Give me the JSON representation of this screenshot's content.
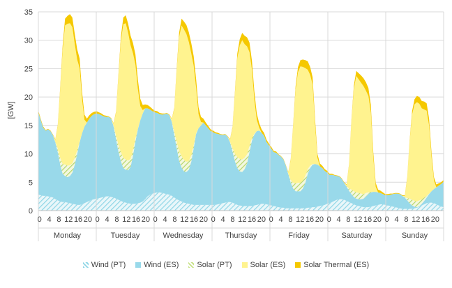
{
  "chart_data": {
    "type": "area",
    "stacked": true,
    "ylabel": "[GW]",
    "ylim": [
      0,
      35
    ],
    "yticks": [
      0,
      5,
      10,
      15,
      20,
      25,
      30,
      35
    ],
    "hour_labels": [
      "0",
      "4",
      "8",
      "12",
      "16",
      "20"
    ],
    "days": [
      "Monday",
      "Tuesday",
      "Wednesday",
      "Thursday",
      "Friday",
      "Saturday",
      "Sunday"
    ],
    "hours_per_day": 24,
    "x_unit": "hour",
    "legend_position": "bottom",
    "grid": "horizontal",
    "series": [
      {
        "name": "Wind (PT)",
        "color": "#8fd6e6",
        "pattern": "hatch",
        "values": [
          2.8,
          2.7,
          2.6,
          2.6,
          2.5,
          2.4,
          2.3,
          2.0,
          1.8,
          1.6,
          1.5,
          1.5,
          1.4,
          1.3,
          1.2,
          1.1,
          1.0,
          1.0,
          1.1,
          1.3,
          1.5,
          1.7,
          1.9,
          2.0,
          2.1,
          2.2,
          2.3,
          2.4,
          2.5,
          2.5,
          2.4,
          2.3,
          2.1,
          1.9,
          1.7,
          1.5,
          1.4,
          1.3,
          1.2,
          1.2,
          1.2,
          1.3,
          1.4,
          1.6,
          2.0,
          2.5,
          2.8,
          3.0,
          3.1,
          3.2,
          3.2,
          3.1,
          3.0,
          2.9,
          2.8,
          2.6,
          2.3,
          2.0,
          1.8,
          1.6,
          1.4,
          1.3,
          1.2,
          1.1,
          1.0,
          1.0,
          1.0,
          1.0,
          1.0,
          1.0,
          1.0,
          1.0,
          1.0,
          1.0,
          1.1,
          1.2,
          1.3,
          1.4,
          1.5,
          1.5,
          1.4,
          1.2,
          1.0,
          0.9,
          0.8,
          0.8,
          0.8,
          0.8,
          0.8,
          0.9,
          1.0,
          1.1,
          1.2,
          1.2,
          1.1,
          1.0,
          0.9,
          0.8,
          0.7,
          0.6,
          0.5,
          0.5,
          0.4,
          0.4,
          0.4,
          0.4,
          0.4,
          0.4,
          0.4,
          0.4,
          0.4,
          0.5,
          0.5,
          0.6,
          0.6,
          0.7,
          0.8,
          0.9,
          1.0,
          1.2,
          1.3,
          1.5,
          1.7,
          1.9,
          2.0,
          2.0,
          1.9,
          1.7,
          1.5,
          1.3,
          1.1,
          0.9,
          0.8,
          0.7,
          0.6,
          0.6,
          0.6,
          0.7,
          0.8,
          0.9,
          1.0,
          1.1,
          1.1,
          1.0,
          0.9,
          0.8,
          0.7,
          0.6,
          0.5,
          0.4,
          0.3,
          0.3,
          0.3,
          0.3,
          0.3,
          0.4,
          0.5,
          0.7,
          0.9,
          1.1,
          1.3,
          1.4,
          1.4,
          1.3,
          1.1,
          0.9,
          0.7,
          0.6
        ]
      },
      {
        "name": "Wind (ES)",
        "color": "#99d9ea",
        "pattern": "solid",
        "values": [
          14.5,
          13.2,
          12.0,
          11.5,
          11.8,
          11.6,
          11.0,
          10.0,
          8.5,
          6.5,
          5.0,
          4.6,
          4.5,
          4.8,
          5.5,
          7.0,
          9.0,
          11.0,
          12.5,
          13.5,
          14.0,
          14.5,
          14.8,
          15.0,
          15.0,
          14.8,
          14.5,
          14.2,
          14.0,
          14.0,
          13.8,
          12.5,
          10.5,
          8.5,
          7.0,
          6.0,
          5.8,
          5.8,
          6.5,
          8.5,
          11.0,
          13.0,
          14.5,
          15.5,
          16.0,
          15.5,
          15.0,
          14.5,
          14.2,
          14.0,
          13.8,
          13.8,
          14.0,
          14.2,
          14.0,
          13.0,
          11.0,
          9.0,
          7.0,
          6.0,
          5.5,
          5.5,
          6.0,
          7.5,
          10.0,
          12.5,
          13.5,
          14.0,
          14.5,
          14.0,
          13.5,
          13.0,
          12.8,
          12.6,
          12.4,
          12.2,
          12.0,
          12.0,
          11.5,
          10.5,
          9.0,
          7.5,
          6.5,
          6.0,
          6.0,
          6.5,
          7.5,
          9.5,
          11.5,
          12.5,
          13.0,
          13.0,
          12.5,
          12.0,
          11.0,
          10.5,
          10.0,
          9.5,
          9.5,
          9.2,
          9.0,
          8.5,
          7.5,
          6.0,
          4.5,
          3.5,
          3.0,
          3.0,
          3.0,
          3.5,
          4.5,
          6.0,
          7.0,
          7.5,
          7.6,
          7.4,
          7.0,
          6.6,
          6.0,
          5.5,
          5.0,
          4.8,
          4.5,
          4.2,
          4.0,
          3.6,
          3.0,
          2.5,
          2.0,
          1.6,
          1.3,
          1.2,
          1.2,
          1.3,
          1.5,
          1.9,
          2.3,
          2.5,
          2.5,
          2.4,
          2.2,
          2.0,
          1.8,
          1.7,
          1.8,
          2.0,
          2.2,
          2.4,
          2.5,
          2.5,
          2.3,
          2.0,
          1.5,
          1.0,
          0.6,
          0.3,
          0.1,
          0.1,
          0.3,
          0.6,
          1.0,
          1.5,
          2.0,
          2.5,
          3.0,
          3.5,
          4.0,
          4.5
        ]
      },
      {
        "name": "Solar (PT)",
        "color": "#c9e38a",
        "pattern": "hatch",
        "values": [
          0,
          0,
          0,
          0,
          0,
          0,
          0,
          0.1,
          0.6,
          1.2,
          1.7,
          2.0,
          2.0,
          1.9,
          1.6,
          1.2,
          0.6,
          0.1,
          0,
          0,
          0,
          0,
          0,
          0,
          0,
          0,
          0,
          0,
          0,
          0,
          0,
          0.1,
          0.6,
          1.2,
          1.6,
          1.8,
          1.8,
          1.7,
          1.4,
          1.0,
          0.5,
          0.1,
          0,
          0,
          0,
          0,
          0,
          0,
          0,
          0,
          0,
          0,
          0,
          0,
          0,
          0.1,
          0.6,
          1.2,
          1.7,
          2.0,
          2.0,
          1.8,
          1.5,
          1.1,
          0.5,
          0.1,
          0,
          0,
          0,
          0,
          0,
          0,
          0,
          0,
          0,
          0,
          0,
          0,
          0,
          0.1,
          0.6,
          1.3,
          1.9,
          2.2,
          2.2,
          2.0,
          1.6,
          1.1,
          0.5,
          0.1,
          0,
          0,
          0,
          0,
          0,
          0,
          0,
          0,
          0,
          0,
          0,
          0,
          0,
          0.1,
          0.5,
          1.0,
          1.4,
          1.5,
          1.5,
          1.4,
          1.2,
          0.8,
          0.4,
          0.1,
          0,
          0,
          0,
          0,
          0,
          0,
          0,
          0,
          0,
          0,
          0,
          0,
          0,
          0.1,
          0.4,
          0.8,
          1.0,
          1.1,
          1.1,
          1.0,
          0.8,
          0.6,
          0.3,
          0.1,
          0,
          0,
          0,
          0,
          0,
          0,
          0,
          0,
          0,
          0,
          0,
          0,
          0,
          0.1,
          0.4,
          0.8,
          1.0,
          1.0,
          1.0,
          1.0,
          0.8,
          0.6,
          0.3,
          0.1,
          0,
          0,
          0,
          0,
          0,
          0
        ]
      },
      {
        "name": "Solar (ES)",
        "color": "#fff38f",
        "pattern": "solid",
        "values": [
          0,
          0,
          0,
          0,
          0,
          0,
          0,
          0.4,
          4.0,
          12.0,
          20.0,
          24.5,
          25.0,
          25.0,
          24.0,
          20.0,
          16.0,
          13.0,
          6.0,
          1.2,
          0,
          0,
          0,
          0,
          0,
          0,
          0,
          0,
          0,
          0,
          0,
          0.4,
          4.0,
          12.0,
          19.5,
          23.5,
          24.0,
          22.5,
          20.0,
          17.0,
          13.0,
          7.0,
          2.5,
          0.6,
          0,
          0,
          0,
          0,
          0,
          0,
          0,
          0,
          0,
          0,
          0,
          0.4,
          4.0,
          12.5,
          20.0,
          23.0,
          23.0,
          22.5,
          21.0,
          18.0,
          14.0,
          8.0,
          2.5,
          0.6,
          0,
          0,
          0,
          0,
          0,
          0,
          0,
          0,
          0,
          0,
          0,
          0.4,
          3.5,
          10.5,
          17.5,
          20.0,
          21.0,
          20.0,
          19.0,
          16.5,
          12.0,
          6.0,
          2.0,
          0.5,
          0,
          0,
          0,
          0,
          0,
          0,
          0,
          0,
          0,
          0,
          0,
          0.2,
          3.5,
          10.0,
          16.5,
          19.5,
          20.5,
          20.0,
          19.0,
          17.5,
          16.0,
          14.0,
          7.0,
          1.2,
          0,
          0,
          0,
          0,
          0,
          0,
          0,
          0,
          0,
          0,
          0,
          0.2,
          4.0,
          12.0,
          18.0,
          20.5,
          20.0,
          19.5,
          19.0,
          18.0,
          17.0,
          14.0,
          6.0,
          0.9,
          0,
          0,
          0,
          0,
          0,
          0,
          0,
          0,
          0,
          0,
          0,
          0.2,
          3.5,
          10.0,
          15.0,
          17.0,
          17.5,
          17.0,
          16.0,
          15.5,
          15.0,
          12.0,
          6.0,
          1.5,
          0,
          0,
          0,
          0
        ]
      },
      {
        "name": "Solar Thermal (ES)",
        "color": "#f5c800",
        "pattern": "solid",
        "values": [
          0.3,
          0.2,
          0.2,
          0.1,
          0.1,
          0.1,
          0.1,
          0.1,
          0.2,
          0.4,
          0.8,
          1.2,
          1.4,
          1.6,
          1.7,
          1.8,
          1.8,
          1.7,
          1.3,
          0.9,
          0.7,
          0.6,
          0.5,
          0.4,
          0.4,
          0.3,
          0.3,
          0.2,
          0.2,
          0.1,
          0.1,
          0.1,
          0.2,
          0.4,
          0.8,
          1.2,
          1.4,
          1.6,
          1.7,
          1.8,
          1.8,
          1.7,
          1.3,
          0.9,
          0.7,
          0.6,
          0.5,
          0.4,
          0.3,
          0.3,
          0.2,
          0.2,
          0.1,
          0.1,
          0.1,
          0.1,
          0.2,
          0.4,
          0.8,
          1.2,
          1.4,
          1.6,
          1.7,
          1.8,
          1.7,
          1.6,
          1.2,
          0.9,
          0.7,
          0.5,
          0.4,
          0.3,
          0.3,
          0.2,
          0.2,
          0.1,
          0.1,
          0.1,
          0.1,
          0.1,
          0.2,
          0.4,
          0.8,
          1.1,
          1.3,
          1.5,
          1.6,
          1.7,
          1.6,
          1.5,
          1.1,
          0.8,
          0.6,
          0.5,
          0.4,
          0.3,
          0.3,
          0.2,
          0.2,
          0.1,
          0.1,
          0.1,
          0.1,
          0.1,
          0.2,
          0.3,
          0.6,
          0.9,
          1.1,
          1.3,
          1.4,
          1.5,
          1.4,
          1.3,
          1.0,
          0.7,
          0.5,
          0.4,
          0.3,
          0.3,
          0.2,
          0.2,
          0.1,
          0.1,
          0.1,
          0.1,
          0.1,
          0.1,
          0.2,
          0.3,
          0.6,
          0.9,
          1.1,
          1.3,
          1.4,
          1.5,
          1.4,
          1.3,
          1.0,
          0.7,
          0.5,
          0.4,
          0.3,
          0.2,
          0.2,
          0.2,
          0.1,
          0.1,
          0.1,
          0.1,
          0.1,
          0.1,
          0.2,
          0.3,
          0.6,
          0.9,
          1.1,
          1.2,
          1.3,
          1.4,
          1.3,
          1.2,
          0.9,
          0.6,
          0.5,
          0.4,
          0.3,
          0.3
        ]
      }
    ]
  }
}
